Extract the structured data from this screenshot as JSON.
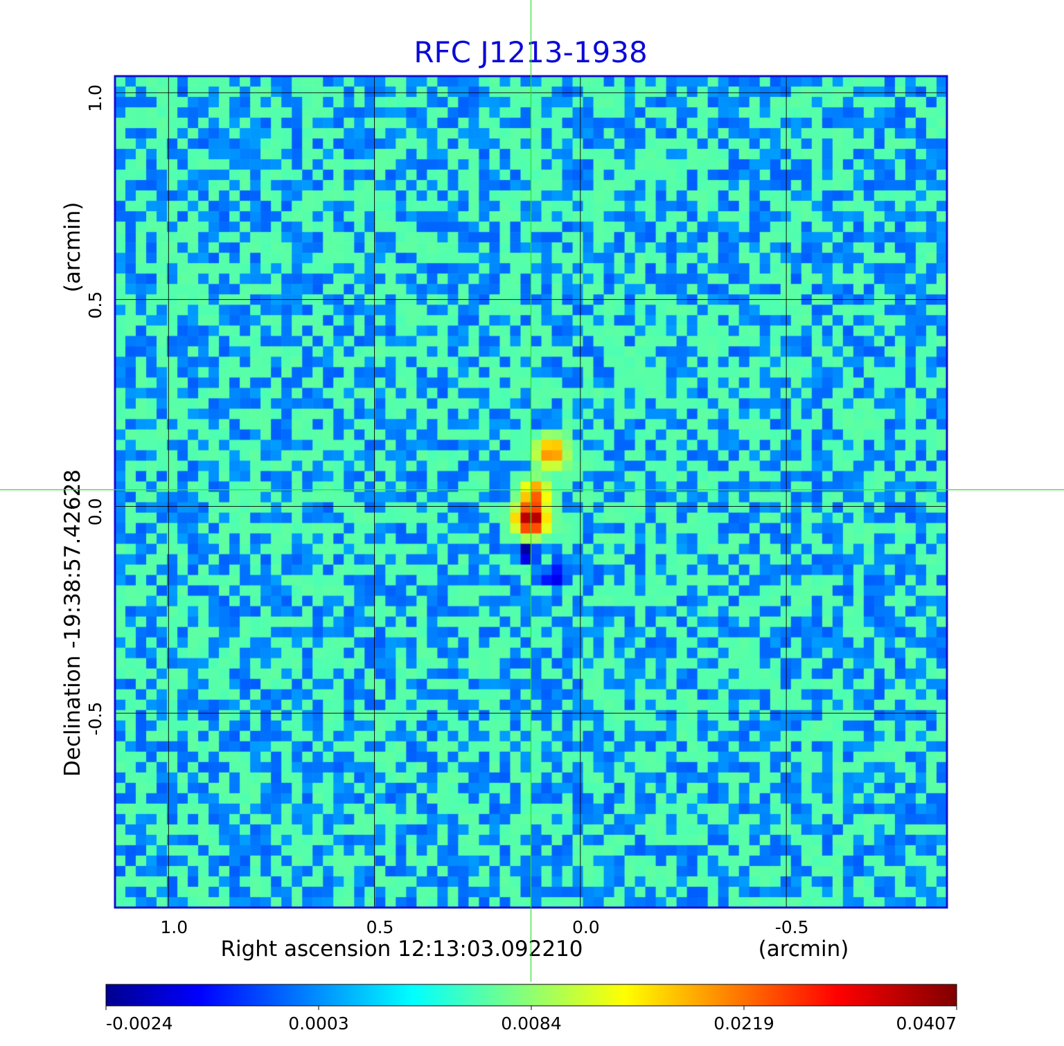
{
  "chart_data": {
    "type": "heatmap",
    "title": "RFC J1213-1938",
    "xlabel": "Right ascension  12:13:03.092210",
    "xunit": "(arcmin)",
    "ylabel": "Declination  -19:38:57.42628",
    "yunit": "(arcmin)",
    "x_ticks": [
      "1.0",
      "0.5",
      "0.0",
      "-0.5"
    ],
    "x_tick_values": [
      1.0,
      0.5,
      0.0,
      -0.5
    ],
    "y_ticks": [
      "1.0",
      "0.5",
      "0.0",
      "-0.5"
    ],
    "y_tick_values": [
      1.0,
      0.5,
      0.0,
      -0.5
    ],
    "xlim": [
      1.13,
      -0.89
    ],
    "ylim": [
      -0.97,
      1.04
    ],
    "grid": true,
    "crosshair": {
      "x": 0.12,
      "y": 0.04
    },
    "colorbar": {
      "colormap": "jet",
      "ticks": [
        "-0.0024",
        "0.0003",
        "0.0084",
        "0.0219",
        "0.0407"
      ],
      "tick_values": [
        -0.0024,
        0.0003,
        0.0084,
        0.0219,
        0.0407
      ]
    },
    "background_level": 0.0,
    "sources": [
      {
        "x": 0.12,
        "y": -0.03,
        "peak": 0.0407,
        "sigma": 0.022
      },
      {
        "x": 0.11,
        "y": 0.03,
        "peak": 0.018,
        "sigma": 0.02
      },
      {
        "x": 0.07,
        "y": 0.13,
        "peak": 0.017,
        "sigma": 0.022
      },
      {
        "x": 0.13,
        "y": -0.11,
        "peak": -0.0024,
        "sigma": 0.016
      },
      {
        "x": 0.06,
        "y": -0.17,
        "peak": -0.0012,
        "sigma": 0.02
      }
    ],
    "colors": {
      "title": "#0a0ad8",
      "frame": "#1010d0",
      "grid": "#000000",
      "crosshair": "#2ee02e",
      "background": "#1e8cf0"
    }
  }
}
